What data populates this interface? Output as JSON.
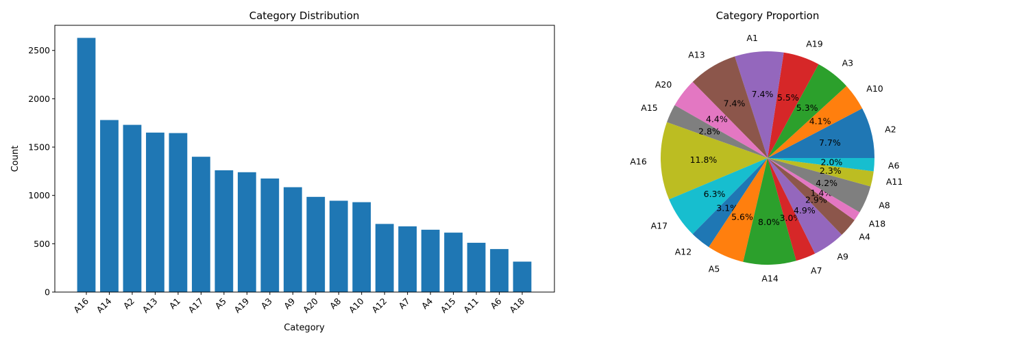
{
  "chart_data": [
    {
      "type": "bar",
      "title": "Category Distribution",
      "xlabel": "Category",
      "ylabel": "Count",
      "categories": [
        "A16",
        "A14",
        "A2",
        "A13",
        "A1",
        "A17",
        "A5",
        "A19",
        "A3",
        "A9",
        "A20",
        "A8",
        "A10",
        "A12",
        "A7",
        "A4",
        "A15",
        "A11",
        "A6",
        "A18"
      ],
      "values": [
        2630,
        1780,
        1730,
        1650,
        1645,
        1400,
        1260,
        1240,
        1175,
        1085,
        985,
        945,
        930,
        705,
        680,
        645,
        615,
        510,
        445,
        315
      ],
      "ylim": [
        0,
        2760
      ],
      "yticks": [
        0,
        500,
        1000,
        1500,
        2000,
        2500
      ],
      "color": "#1f77b4",
      "grid": false
    },
    {
      "type": "pie",
      "title": "Category Proportion",
      "labels": [
        "A2",
        "A10",
        "A3",
        "A19",
        "A1",
        "A13",
        "A20",
        "A15",
        "A16",
        "A17",
        "A12",
        "A5",
        "A14",
        "A7",
        "A9",
        "A4",
        "A18",
        "A8",
        "A11",
        "A6"
      ],
      "values": [
        7.7,
        4.1,
        5.3,
        5.5,
        7.4,
        7.4,
        4.4,
        2.8,
        11.8,
        6.3,
        3.1,
        5.6,
        8.0,
        3.0,
        4.9,
        2.9,
        1.4,
        4.2,
        2.3,
        2.0
      ],
      "pct_labels": [
        "7.7%",
        "4.1%",
        "5.3%",
        "5.5%",
        "7.4%",
        "7.4%",
        "4.4%",
        "2.8%",
        "11.8%",
        "6.3%",
        "3.1%",
        "5.6%",
        "8.0%",
        "3.0%",
        "4.9%",
        "2.9%",
        "1.4%",
        "4.2%",
        "2.3%",
        "2.0%"
      ],
      "colors": [
        "#1f77b4",
        "#ff7f0e",
        "#2ca02c",
        "#d62728",
        "#9467bd",
        "#8c564b",
        "#e377c2",
        "#7f7f7f",
        "#bcbd22",
        "#17becf",
        "#1f77b4",
        "#ff7f0e",
        "#2ca02c",
        "#d62728",
        "#9467bd",
        "#8c564b",
        "#e377c2",
        "#7f7f7f",
        "#bcbd22",
        "#17becf"
      ],
      "start_angle": 0,
      "direction": "counterclockwise"
    }
  ]
}
